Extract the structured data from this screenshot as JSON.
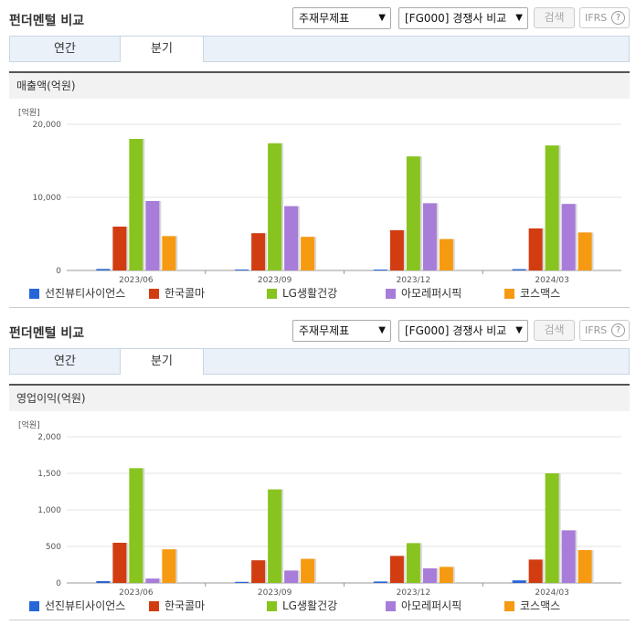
{
  "colors": {
    "series": [
      "#2766d8",
      "#d13d11",
      "#88c420",
      "#a77dd9",
      "#f69a12"
    ]
  },
  "panels": [
    {
      "title": "펀더멘털 비교",
      "statement_select": "주재무제표",
      "compare_select": "[FG000] 경쟁사 비교",
      "search_label": "검색",
      "ifrs_label": "IFRS",
      "help_icon": "?",
      "tabs": [
        "연간",
        "분기"
      ],
      "active_tab": "분기",
      "subtitle": "매출액(억원)"
    },
    {
      "title": "펀더멘털 비교",
      "statement_select": "주재무제표",
      "compare_select": "[FG000] 경쟁사 비교",
      "search_label": "검색",
      "ifrs_label": "IFRS",
      "help_icon": "?",
      "tabs": [
        "연간",
        "분기"
      ],
      "active_tab": "분기",
      "subtitle": "영업이익(억원)"
    }
  ],
  "chart_data": [
    {
      "type": "bar",
      "unit_label": "[억원]",
      "categories": [
        "2023/06",
        "2023/09",
        "2023/12",
        "2024/03"
      ],
      "ylim": [
        0,
        20000
      ],
      "yticks": [
        "0",
        "10,000",
        "20,000"
      ],
      "ytick_values": [
        0,
        10000,
        20000
      ],
      "series": [
        {
          "name": "선진뷰티사이언스",
          "values": [
            200,
            130,
            120,
            180
          ]
        },
        {
          "name": "한국콜마",
          "values": [
            6000,
            5100,
            5500,
            5750
          ]
        },
        {
          "name": "LG생활건강",
          "values": [
            18000,
            17400,
            15600,
            17100
          ]
        },
        {
          "name": "아모레퍼시픽",
          "values": [
            9500,
            8800,
            9200,
            9100
          ]
        },
        {
          "name": "코스맥스",
          "values": [
            4700,
            4600,
            4300,
            5200
          ]
        }
      ]
    },
    {
      "type": "bar",
      "unit_label": "[억원]",
      "categories": [
        "2023/06",
        "2023/09",
        "2023/12",
        "2024/03"
      ],
      "ylim": [
        0,
        2000
      ],
      "yticks": [
        "0",
        "500",
        "1,000",
        "1,500",
        "2,000"
      ],
      "ytick_values": [
        0,
        500,
        1000,
        1500,
        2000
      ],
      "series": [
        {
          "name": "선진뷰티사이언스",
          "values": [
            25,
            15,
            20,
            35
          ]
        },
        {
          "name": "한국콜마",
          "values": [
            550,
            310,
            370,
            320
          ]
        },
        {
          "name": "LG생활건강",
          "values": [
            1570,
            1280,
            545,
            1500
          ]
        },
        {
          "name": "아모레퍼시픽",
          "values": [
            60,
            170,
            200,
            720
          ]
        },
        {
          "name": "코스맥스",
          "values": [
            460,
            330,
            220,
            450
          ]
        }
      ]
    }
  ]
}
